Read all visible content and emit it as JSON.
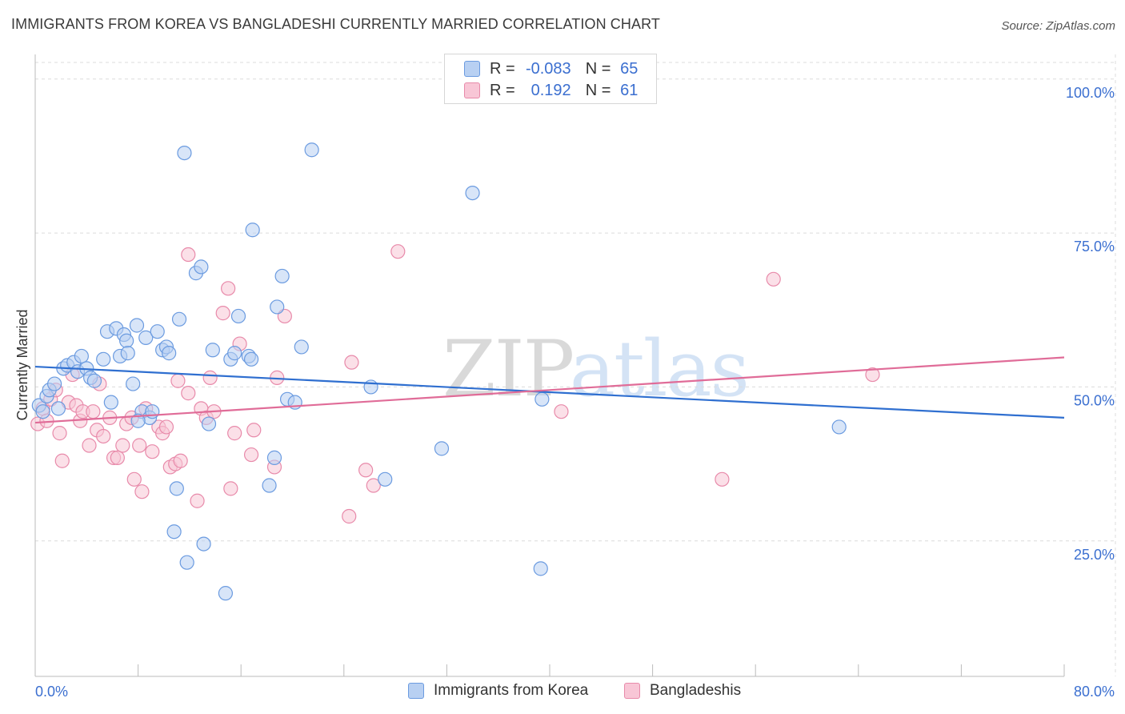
{
  "title": "IMMIGRANTS FROM KOREA VS BANGLADESHI CURRENTLY MARRIED CORRELATION CHART",
  "source": "Source: ZipAtlas.com",
  "watermark": {
    "zip": "ZIP",
    "atlas": "atlas"
  },
  "colors": {
    "blue_fill": "#b8d0f2",
    "blue_stroke": "#6b9be0",
    "blue_line": "#2f6fd0",
    "pink_fill": "#f8c6d6",
    "pink_stroke": "#e88aaa",
    "pink_line": "#e06c98",
    "tick_label": "#3b6fd0",
    "grid": "#dcdcdc"
  },
  "legend_top": {
    "rows": [
      {
        "key_r": "R =",
        "r": "-0.083",
        "key_n": "N =",
        "n": "65",
        "series": "blue"
      },
      {
        "key_r": "R =",
        "r": "0.192",
        "key_n": "N =",
        "n": "61",
        "series": "pink"
      }
    ]
  },
  "legend_bottom": {
    "items": [
      {
        "label": "Immigrants from Korea",
        "series": "blue"
      },
      {
        "label": "Bangladeshis",
        "series": "pink"
      }
    ]
  },
  "chart_data": {
    "type": "scatter",
    "title": "IMMIGRANTS FROM KOREA VS BANGLADESHI CURRENTLY MARRIED CORRELATION CHART",
    "xlabel": "",
    "ylabel": "Currently Married",
    "xlim": [
      0,
      80
    ],
    "ylim": [
      3,
      104
    ],
    "x_tick_labels": [
      {
        "value": 0,
        "label": "0.0%"
      },
      {
        "value": 80,
        "label": "80.0%"
      }
    ],
    "y_tick_labels": [
      {
        "value": 100,
        "label": "100.0%"
      },
      {
        "value": 75,
        "label": "75.0%"
      },
      {
        "value": 50,
        "label": "50.0%"
      },
      {
        "value": 25,
        "label": "25.0%"
      }
    ],
    "x_minor_ticks": [
      8,
      16,
      24,
      32,
      40,
      48,
      56,
      64,
      72
    ],
    "grid": true,
    "legend_position": "top-center",
    "series": [
      {
        "name": "Immigrants from Korea",
        "color": "#6b9be0",
        "trend": {
          "x": [
            0,
            80
          ],
          "y": [
            53.3,
            45.0
          ]
        },
        "points": [
          [
            0.3,
            47
          ],
          [
            0.6,
            46
          ],
          [
            0.9,
            48.5
          ],
          [
            1.1,
            49.5
          ],
          [
            1.5,
            50.5
          ],
          [
            1.8,
            46.5
          ],
          [
            2.2,
            53
          ],
          [
            2.5,
            53.5
          ],
          [
            3.0,
            54
          ],
          [
            3.3,
            52.5
          ],
          [
            3.6,
            55
          ],
          [
            4.0,
            53
          ],
          [
            4.3,
            51.5
          ],
          [
            4.6,
            51
          ],
          [
            5.3,
            54.5
          ],
          [
            5.6,
            59
          ],
          [
            5.9,
            47.5
          ],
          [
            6.3,
            59.5
          ],
          [
            6.6,
            55
          ],
          [
            6.9,
            58.5
          ],
          [
            7.1,
            57.5
          ],
          [
            7.6,
            50.5
          ],
          [
            7.9,
            60
          ],
          [
            8.3,
            46
          ],
          [
            8.6,
            58
          ],
          [
            8.9,
            45
          ],
          [
            9.1,
            46
          ],
          [
            9.5,
            59
          ],
          [
            9.9,
            56
          ],
          [
            10.2,
            56.5
          ],
          [
            10.4,
            55.5
          ],
          [
            11.0,
            33.5
          ],
          [
            11.2,
            61
          ],
          [
            11.6,
            88
          ],
          [
            11.8,
            21.5
          ],
          [
            12.5,
            68.5
          ],
          [
            12.9,
            69.5
          ],
          [
            13.1,
            24.5
          ],
          [
            13.5,
            44
          ],
          [
            13.8,
            56
          ],
          [
            14.8,
            16.5
          ],
          [
            15.2,
            54.5
          ],
          [
            15.5,
            55.5
          ],
          [
            15.8,
            61.5
          ],
          [
            16.6,
            55
          ],
          [
            16.8,
            54.5
          ],
          [
            16.9,
            75.5
          ],
          [
            18.2,
            34
          ],
          [
            18.6,
            38.5
          ],
          [
            18.8,
            63
          ],
          [
            19.2,
            68
          ],
          [
            19.6,
            48
          ],
          [
            20.2,
            47.5
          ],
          [
            20.7,
            56.5
          ],
          [
            21.5,
            88.5
          ],
          [
            26.1,
            50
          ],
          [
            27.2,
            35
          ],
          [
            31.6,
            40
          ],
          [
            34.0,
            81.5
          ],
          [
            39.3,
            20.5
          ],
          [
            39.4,
            48
          ],
          [
            62.5,
            43.5
          ],
          [
            10.8,
            26.5
          ],
          [
            8.0,
            44.5
          ],
          [
            7.2,
            55.5
          ]
        ]
      },
      {
        "name": "Bangladeshis",
        "color": "#e88aaa",
        "trend": {
          "x": [
            0,
            80
          ],
          "y": [
            44.2,
            54.8
          ]
        },
        "points": [
          [
            0.2,
            44
          ],
          [
            0.6,
            46.5
          ],
          [
            0.9,
            44.5
          ],
          [
            1.2,
            48
          ],
          [
            1.6,
            49.5
          ],
          [
            1.9,
            42.5
          ],
          [
            2.1,
            38
          ],
          [
            2.6,
            47.5
          ],
          [
            2.9,
            52
          ],
          [
            3.2,
            47
          ],
          [
            3.5,
            44.5
          ],
          [
            3.7,
            46
          ],
          [
            4.2,
            40.5
          ],
          [
            4.5,
            46
          ],
          [
            4.8,
            43
          ],
          [
            5.0,
            50.5
          ],
          [
            5.3,
            42
          ],
          [
            5.8,
            45
          ],
          [
            6.1,
            38.5
          ],
          [
            6.4,
            38.5
          ],
          [
            6.8,
            40.5
          ],
          [
            7.1,
            44
          ],
          [
            7.5,
            45
          ],
          [
            7.7,
            35
          ],
          [
            8.1,
            40.5
          ],
          [
            8.3,
            33
          ],
          [
            8.6,
            46.5
          ],
          [
            9.1,
            39.5
          ],
          [
            9.6,
            43.5
          ],
          [
            9.9,
            42.5
          ],
          [
            10.2,
            43.5
          ],
          [
            10.5,
            37
          ],
          [
            10.9,
            37.5
          ],
          [
            11.3,
            38
          ],
          [
            11.1,
            51
          ],
          [
            11.9,
            49
          ],
          [
            11.9,
            71.5
          ],
          [
            12.6,
            31.5
          ],
          [
            12.9,
            46.5
          ],
          [
            13.3,
            45
          ],
          [
            13.6,
            51.5
          ],
          [
            13.9,
            46
          ],
          [
            14.6,
            62
          ],
          [
            15.0,
            66
          ],
          [
            15.2,
            33.5
          ],
          [
            15.5,
            42.5
          ],
          [
            15.9,
            57
          ],
          [
            16.8,
            39
          ],
          [
            17.0,
            43
          ],
          [
            18.6,
            37
          ],
          [
            18.8,
            51.5
          ],
          [
            19.4,
            61.5
          ],
          [
            24.4,
            29
          ],
          [
            24.6,
            54
          ],
          [
            25.7,
            36.5
          ],
          [
            26.3,
            34
          ],
          [
            28.2,
            72
          ],
          [
            40.9,
            46
          ],
          [
            53.4,
            35
          ],
          [
            57.4,
            67.5
          ],
          [
            65.1,
            52
          ]
        ]
      }
    ]
  }
}
